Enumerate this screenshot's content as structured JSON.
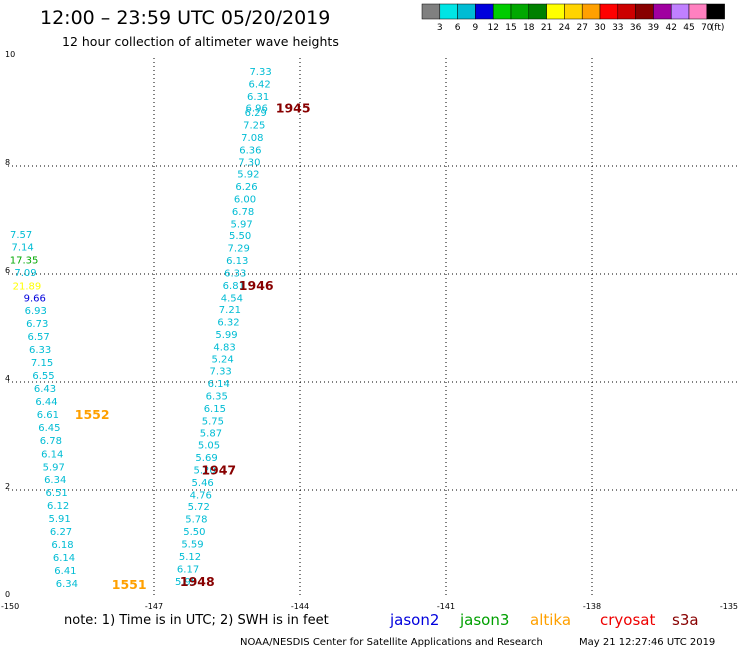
{
  "title": "12:00 – 23:59 UTC 05/20/2019",
  "subtitle": "12 hour collection of altimeter wave heights",
  "color_scale": {
    "labels": [
      "3",
      "6",
      "9",
      "12",
      "15",
      "18",
      "21",
      "24",
      "27",
      "30",
      "33",
      "36",
      "39",
      "42",
      "45",
      "70"
    ],
    "unit": "(ft)",
    "colors": [
      "#808080",
      "#00e5e5",
      "#00bcd4",
      "#0000dd",
      "#00cc00",
      "#00a800",
      "#008000",
      "#ffff00",
      "#ffd400",
      "#ffa000",
      "#ff0000",
      "#cc0000",
      "#880000",
      "#a000a0",
      "#c080ff",
      "#ff80c0",
      "#000000"
    ]
  },
  "note": "note:  1) Time is in UTC;  2) SWH is in feet",
  "footer_left": "NOAA/NESDIS Center for Satellite Applications and Research",
  "footer_right": "May 21 12:27:46 UTC 2019",
  "legend": [
    {
      "name": "jason2",
      "color": "#0000dd"
    },
    {
      "name": "jason3",
      "color": "#00a000"
    },
    {
      "name": "altika",
      "color": "#ffa000"
    },
    {
      "name": "cryosat",
      "color": "#ee0000"
    },
    {
      "name": "s3a",
      "color": "#880000"
    }
  ],
  "chart_data": {
    "type": "scatter",
    "xlim": [
      -150,
      -135
    ],
    "ylim": [
      0,
      10
    ],
    "x_ticks": [
      "-150",
      "-147",
      "-144",
      "-141",
      "-138",
      "-135"
    ],
    "y_ticks": [
      "0",
      "2",
      "4",
      "6",
      "8",
      "10"
    ],
    "grid": true,
    "points": [
      {
        "x": -144.81,
        "y": 9.75,
        "label": "7.33",
        "color": "#00bcd4"
      },
      {
        "x": -144.83,
        "y": 9.52,
        "label": "6.42",
        "color": "#00bcd4"
      },
      {
        "x": -144.86,
        "y": 9.29,
        "label": "6.31",
        "color": "#00bcd4"
      },
      {
        "x": -144.89,
        "y": 9.07,
        "label": "6.96",
        "color": "#00bcd4"
      },
      {
        "x": -144.91,
        "y": 8.99,
        "label": "6.29",
        "color": "#00bcd4"
      },
      {
        "x": -144.94,
        "y": 8.76,
        "label": "7.25",
        "color": "#00bcd4"
      },
      {
        "x": -144.98,
        "y": 8.53,
        "label": "7.08",
        "color": "#00bcd4"
      },
      {
        "x": -145.02,
        "y": 8.3,
        "label": "6.36",
        "color": "#00bcd4"
      },
      {
        "x": -145.04,
        "y": 8.07,
        "label": "7.30",
        "color": "#00bcd4"
      },
      {
        "x": -145.06,
        "y": 7.85,
        "label": "5.92",
        "color": "#00bcd4"
      },
      {
        "x": -145.1,
        "y": 7.62,
        "label": "6.26",
        "color": "#00bcd4"
      },
      {
        "x": -145.13,
        "y": 7.39,
        "label": "6.00",
        "color": "#00bcd4"
      },
      {
        "x": -145.17,
        "y": 7.16,
        "label": "6.78",
        "color": "#00bcd4"
      },
      {
        "x": -145.2,
        "y": 6.93,
        "label": "5.97",
        "color": "#00bcd4"
      },
      {
        "x": -145.23,
        "y": 6.71,
        "label": "5.50",
        "color": "#00bcd4"
      },
      {
        "x": -145.26,
        "y": 6.48,
        "label": "7.29",
        "color": "#00bcd4"
      },
      {
        "x": -145.29,
        "y": 6.25,
        "label": "6.13",
        "color": "#00bcd4"
      },
      {
        "x": -145.33,
        "y": 6.02,
        "label": "6.33",
        "color": "#00bcd4"
      },
      {
        "x": -145.36,
        "y": 5.79,
        "label": "6.81",
        "color": "#00bcd4"
      },
      {
        "x": -145.4,
        "y": 5.56,
        "label": "4.54",
        "color": "#00bcd4"
      },
      {
        "x": -145.44,
        "y": 5.34,
        "label": "7.21",
        "color": "#00bcd4"
      },
      {
        "x": -145.47,
        "y": 5.11,
        "label": "6.32",
        "color": "#00bcd4"
      },
      {
        "x": -145.51,
        "y": 4.88,
        "label": "5.99",
        "color": "#00bcd4"
      },
      {
        "x": -145.55,
        "y": 4.65,
        "label": "4.83",
        "color": "#00bcd4"
      },
      {
        "x": -145.59,
        "y": 4.43,
        "label": "5.24",
        "color": "#00bcd4"
      },
      {
        "x": -145.63,
        "y": 4.2,
        "label": "7.33",
        "color": "#00bcd4"
      },
      {
        "x": -145.67,
        "y": 3.97,
        "label": "6.14",
        "color": "#00bcd4"
      },
      {
        "x": -145.71,
        "y": 3.74,
        "label": "6.35",
        "color": "#00bcd4"
      },
      {
        "x": -145.75,
        "y": 3.51,
        "label": "6.15",
        "color": "#00bcd4"
      },
      {
        "x": -145.79,
        "y": 3.28,
        "label": "5.75",
        "color": "#00bcd4"
      },
      {
        "x": -145.83,
        "y": 3.06,
        "label": "5.87",
        "color": "#00bcd4"
      },
      {
        "x": -145.87,
        "y": 2.83,
        "label": "5.05",
        "color": "#00bcd4"
      },
      {
        "x": -145.92,
        "y": 2.6,
        "label": "5.69",
        "color": "#00bcd4"
      },
      {
        "x": -145.96,
        "y": 2.37,
        "label": "5.20",
        "color": "#00bcd4"
      },
      {
        "x": -146.0,
        "y": 2.14,
        "label": "5.46",
        "color": "#00bcd4"
      },
      {
        "x": -146.04,
        "y": 1.91,
        "label": "4.76",
        "color": "#00bcd4"
      },
      {
        "x": -146.08,
        "y": 1.69,
        "label": "5.72",
        "color": "#00bcd4"
      },
      {
        "x": -146.13,
        "y": 1.46,
        "label": "5.78",
        "color": "#00bcd4"
      },
      {
        "x": -146.17,
        "y": 1.23,
        "label": "5.50",
        "color": "#00bcd4"
      },
      {
        "x": -146.21,
        "y": 1.0,
        "label": "5.59",
        "color": "#00bcd4"
      },
      {
        "x": -146.26,
        "y": 0.77,
        "label": "5.12",
        "color": "#00bcd4"
      },
      {
        "x": -146.3,
        "y": 0.54,
        "label": "6.17",
        "color": "#00bcd4"
      },
      {
        "x": -146.34,
        "y": 0.31,
        "label": "5.95",
        "color": "#00bcd4"
      },
      {
        "x": -149.73,
        "y": 6.73,
        "label": "7.57",
        "color": "#00bcd4"
      },
      {
        "x": -149.7,
        "y": 6.5,
        "label": "7.14",
        "color": "#00bcd4"
      },
      {
        "x": -149.67,
        "y": 6.26,
        "label": "17.35",
        "color": "#00a800"
      },
      {
        "x": -149.64,
        "y": 6.03,
        "label": "7.09",
        "color": "#00bcd4"
      },
      {
        "x": -149.61,
        "y": 5.78,
        "label": "21.89",
        "color": "#ffff00"
      },
      {
        "x": -149.45,
        "y": 5.56,
        "label": "9.66",
        "color": "#0000dd"
      },
      {
        "x": -149.43,
        "y": 5.32,
        "label": "6.93",
        "color": "#00bcd4"
      },
      {
        "x": -149.4,
        "y": 5.08,
        "label": "6.73",
        "color": "#00bcd4"
      },
      {
        "x": -149.37,
        "y": 4.84,
        "label": "6.57",
        "color": "#00bcd4"
      },
      {
        "x": -149.34,
        "y": 4.6,
        "label": "6.33",
        "color": "#00bcd4"
      },
      {
        "x": -149.3,
        "y": 4.36,
        "label": "7.15",
        "color": "#00bcd4"
      },
      {
        "x": -149.27,
        "y": 4.12,
        "label": "6.55",
        "color": "#00bcd4"
      },
      {
        "x": -149.24,
        "y": 3.88,
        "label": "6.43",
        "color": "#00bcd4"
      },
      {
        "x": -149.21,
        "y": 3.64,
        "label": "6.44",
        "color": "#00bcd4"
      },
      {
        "x": -149.18,
        "y": 3.4,
        "label": "6.61",
        "color": "#00bcd4"
      },
      {
        "x": -149.15,
        "y": 3.16,
        "label": "6.45",
        "color": "#00bcd4"
      },
      {
        "x": -149.12,
        "y": 2.92,
        "label": "6.78",
        "color": "#00bcd4"
      },
      {
        "x": -149.09,
        "y": 2.67,
        "label": "6.14",
        "color": "#00bcd4"
      },
      {
        "x": -149.06,
        "y": 2.43,
        "label": "5.97",
        "color": "#00bcd4"
      },
      {
        "x": -149.03,
        "y": 2.19,
        "label": "6.34",
        "color": "#00bcd4"
      },
      {
        "x": -149.0,
        "y": 1.95,
        "label": "6.51",
        "color": "#00bcd4"
      },
      {
        "x": -148.97,
        "y": 1.71,
        "label": "6.12",
        "color": "#00bcd4"
      },
      {
        "x": -148.94,
        "y": 1.47,
        "label": "5.91",
        "color": "#00bcd4"
      },
      {
        "x": -148.91,
        "y": 1.23,
        "label": "6.27",
        "color": "#00bcd4"
      },
      {
        "x": -148.88,
        "y": 0.99,
        "label": "6.18",
        "color": "#00bcd4"
      },
      {
        "x": -148.85,
        "y": 0.75,
        "label": "6.14",
        "color": "#00bcd4"
      },
      {
        "x": -148.82,
        "y": 0.51,
        "label": "6.41",
        "color": "#00bcd4"
      },
      {
        "x": -148.79,
        "y": 0.27,
        "label": "6.34",
        "color": "#00bcd4"
      }
    ],
    "pass_labels": [
      {
        "x": -144.14,
        "y": 9.07,
        "label": "1945",
        "color": "#880000"
      },
      {
        "x": -144.9,
        "y": 5.79,
        "label": "1946",
        "color": "#880000"
      },
      {
        "x": -145.67,
        "y": 2.37,
        "label": "1947",
        "color": "#880000"
      },
      {
        "x": -146.11,
        "y": 0.31,
        "label": "1948",
        "color": "#880000"
      },
      {
        "x": -148.27,
        "y": 3.4,
        "label": "1552",
        "color": "#ffa000"
      },
      {
        "x": -147.51,
        "y": 0.25,
        "label": "1551",
        "color": "#ffa000"
      }
    ]
  }
}
